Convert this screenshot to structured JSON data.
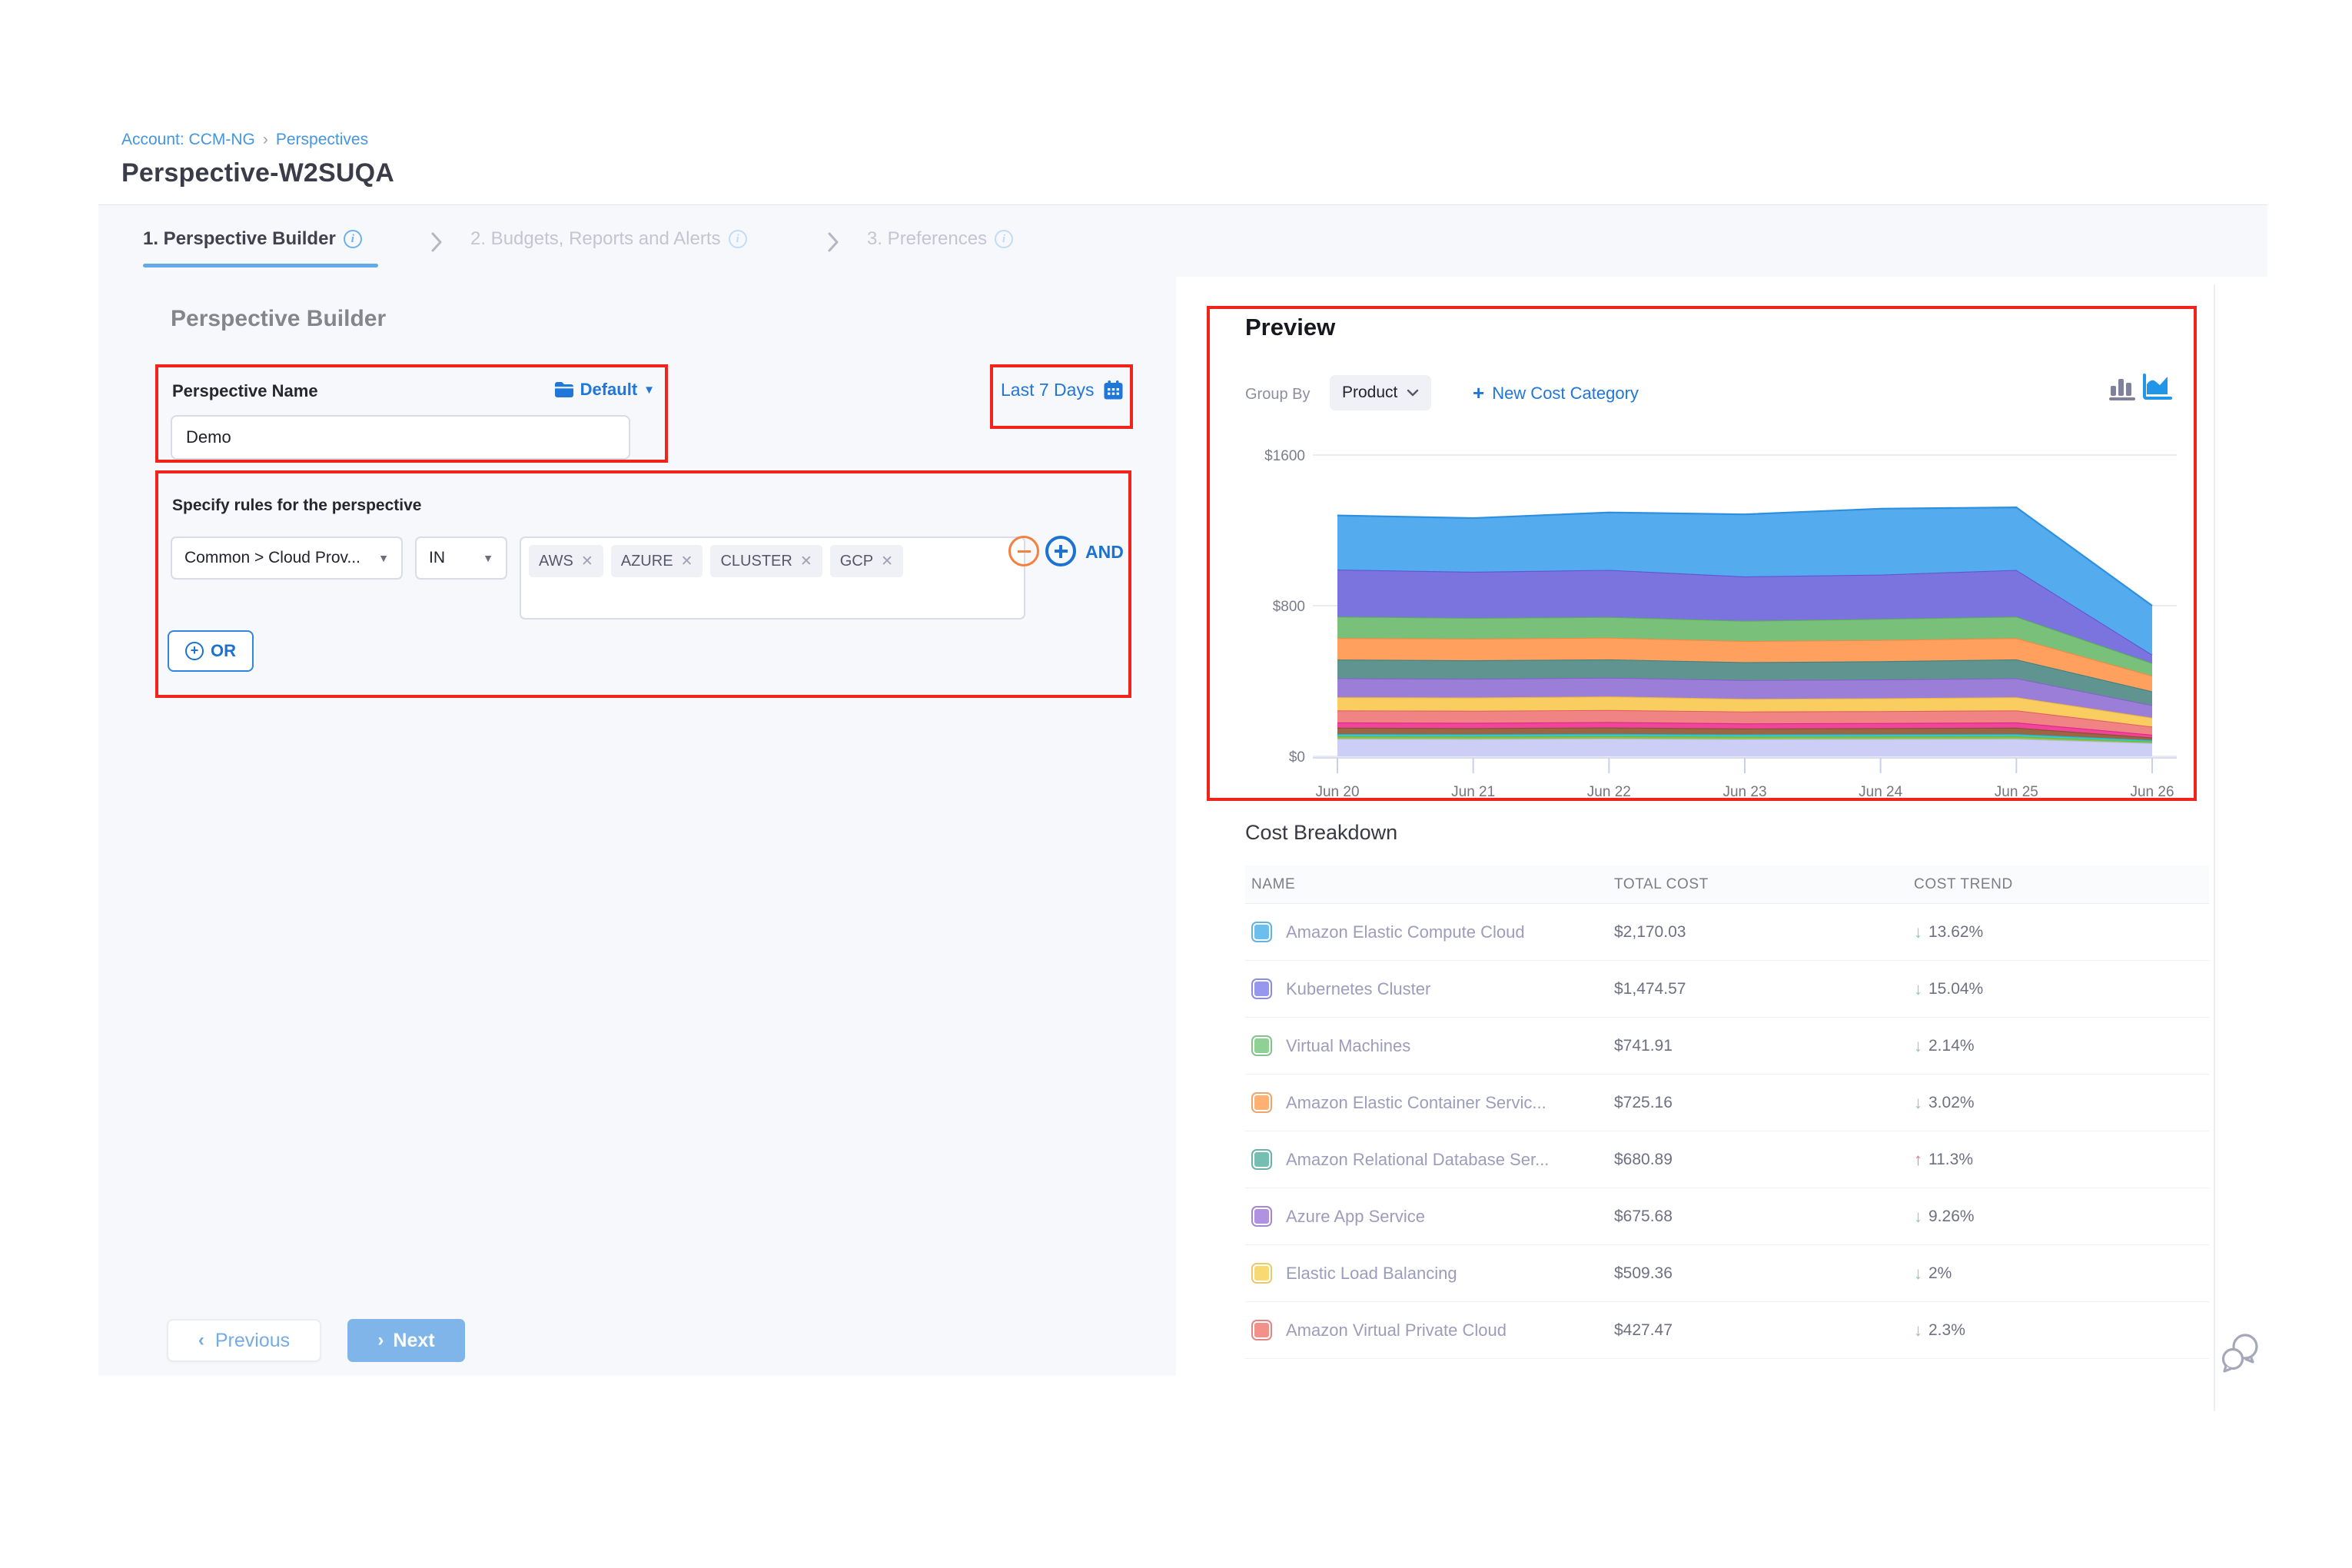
{
  "breadcrumb": {
    "account": "Account: CCM-NG",
    "separator": "›",
    "section": "Perspectives"
  },
  "page_title": "Perspective-W2SUQA",
  "tabs": [
    {
      "label": "1. Perspective Builder",
      "active": true
    },
    {
      "label": "2. Budgets, Reports and Alerts",
      "active": false
    },
    {
      "label": "3. Preferences",
      "active": false
    }
  ],
  "builder": {
    "heading": "Perspective Builder",
    "name_label": "Perspective Name",
    "folder_value": "Default",
    "name_value": "Demo",
    "rules_label": "Specify rules for the perspective",
    "rule": {
      "field": "Common > Cloud Prov...",
      "operator": "IN",
      "values": [
        "AWS",
        "AZURE",
        "CLUSTER",
        "GCP"
      ],
      "and_label": "AND"
    },
    "or_label": "OR",
    "date_range": "Last 7 Days",
    "previous_label": "Previous",
    "next_label": "Next"
  },
  "preview": {
    "heading": "Preview",
    "group_by_label": "Group By",
    "group_by_value": "Product",
    "new_cost_category_label": "New Cost Category"
  },
  "cost_breakdown": {
    "heading": "Cost Breakdown",
    "columns": [
      "NAME",
      "TOTAL COST",
      "COST TREND"
    ],
    "rows": [
      {
        "name": "Amazon Elastic Compute Cloud",
        "swatch": "#6CBEEE",
        "total": "$2,170.03",
        "trend": "13.62%",
        "direction": "down"
      },
      {
        "name": "Kubernetes Cluster",
        "swatch": "#9598EC",
        "total": "$1,474.57",
        "trend": "15.04%",
        "direction": "down"
      },
      {
        "name": "Virtual Machines",
        "swatch": "#8FD194",
        "total": "$741.91",
        "trend": "2.14%",
        "direction": "down"
      },
      {
        "name": "Amazon Elastic Container Servic...",
        "swatch": "#FFB173",
        "total": "$725.16",
        "trend": "3.02%",
        "direction": "down"
      },
      {
        "name": "Amazon Relational Database Ser...",
        "swatch": "#74BFB2",
        "total": "$680.89",
        "trend": "11.3%",
        "direction": "up"
      },
      {
        "name": "Azure App Service",
        "swatch": "#B192E2",
        "total": "$675.68",
        "trend": "9.26%",
        "direction": "down"
      },
      {
        "name": "Elastic Load Balancing",
        "swatch": "#F8D973",
        "total": "$509.36",
        "trend": "2%",
        "direction": "down"
      },
      {
        "name": "Amazon Virtual Private Cloud",
        "swatch": "#F29089",
        "total": "$427.47",
        "trend": "2.3%",
        "direction": "down"
      }
    ]
  },
  "chart_data": {
    "type": "area",
    "stacked": true,
    "title": "Preview cost over time (stacked by Product)",
    "x": [
      "Jun 20",
      "Jun 21",
      "Jun 22",
      "Jun 23",
      "Jun 24",
      "Jun 25",
      "Jun 26"
    ],
    "ylim": [
      0,
      1600
    ],
    "ytick_labels": [
      "$0",
      "$800",
      "$1600"
    ],
    "grid": true,
    "legend": false,
    "series": [
      {
        "name": "(unlabeled)",
        "color": "#CDCEF5",
        "stroke": "#B9BBEF",
        "values": [
          93,
          92,
          94,
          91,
          92,
          93,
          70
        ]
      },
      {
        "name": "(unlabeled)",
        "color": "#8CC63F",
        "stroke": "#7CB32E",
        "values": [
          13,
          13,
          13,
          13,
          13,
          13,
          8
        ]
      },
      {
        "name": "(unlabeled)",
        "color": "#35CBD6",
        "stroke": "#1FB8C4",
        "values": [
          12,
          12,
          12,
          12,
          12,
          12,
          8
        ]
      },
      {
        "name": "(unlabeled)",
        "color": "#9C6644",
        "stroke": "#84502F",
        "values": [
          34,
          33,
          34,
          32,
          33,
          34,
          14
        ]
      },
      {
        "name": "(unlabeled)",
        "color": "#F0459B",
        "stroke": "#DB2A86",
        "values": [
          28,
          28,
          29,
          27,
          27,
          28,
          15
        ]
      },
      {
        "name": "Amazon Virtual Private Cloud",
        "color": "#F08484",
        "stroke": "#E25E5E",
        "values": [
          64,
          64,
          64,
          63,
          63,
          64,
          43
        ]
      },
      {
        "name": "Elastic Load Balancing",
        "color": "#FACD60",
        "stroke": "#EDB83F",
        "values": [
          70,
          70,
          72,
          67,
          68,
          70,
          47
        ]
      },
      {
        "name": "Azure App Service",
        "color": "#9B7ED8",
        "stroke": "#8463C8",
        "values": [
          101,
          100,
          100,
          100,
          100,
          101,
          67
        ]
      },
      {
        "name": "Amazon Relational Database Ser...",
        "color": "#5F9490",
        "stroke": "#45807B",
        "values": [
          99,
          98,
          97,
          95,
          97,
          100,
          73
        ]
      },
      {
        "name": "Amazon Elastic Container Servic...",
        "color": "#FFA05E",
        "stroke": "#F28A42",
        "values": [
          114,
          115,
          115,
          112,
          113,
          113,
          83
        ]
      },
      {
        "name": "Virtual Machines",
        "color": "#79C07B",
        "stroke": "#5BAD5E",
        "values": [
          114,
          110,
          110,
          108,
          112,
          114,
          67
        ]
      },
      {
        "name": "Kubernetes Cluster",
        "color": "#7B74DE",
        "stroke": "#5F55D2",
        "values": [
          250,
          245,
          250,
          235,
          235,
          248,
          45
        ]
      },
      {
        "name": "Amazon Elastic Compute Cloud",
        "color": "#54ACEE",
        "stroke": "#2E8FE0",
        "values": [
          287,
          285,
          305,
          330,
          350,
          332,
          260
        ]
      }
    ]
  },
  "colors": {
    "accent_blue": "#2176D9",
    "annotation_red": "#F2231A",
    "trend_down_green": "#7ED488",
    "trend_up_red": "#F2766B",
    "panel_bg": "#F6F8FB"
  }
}
